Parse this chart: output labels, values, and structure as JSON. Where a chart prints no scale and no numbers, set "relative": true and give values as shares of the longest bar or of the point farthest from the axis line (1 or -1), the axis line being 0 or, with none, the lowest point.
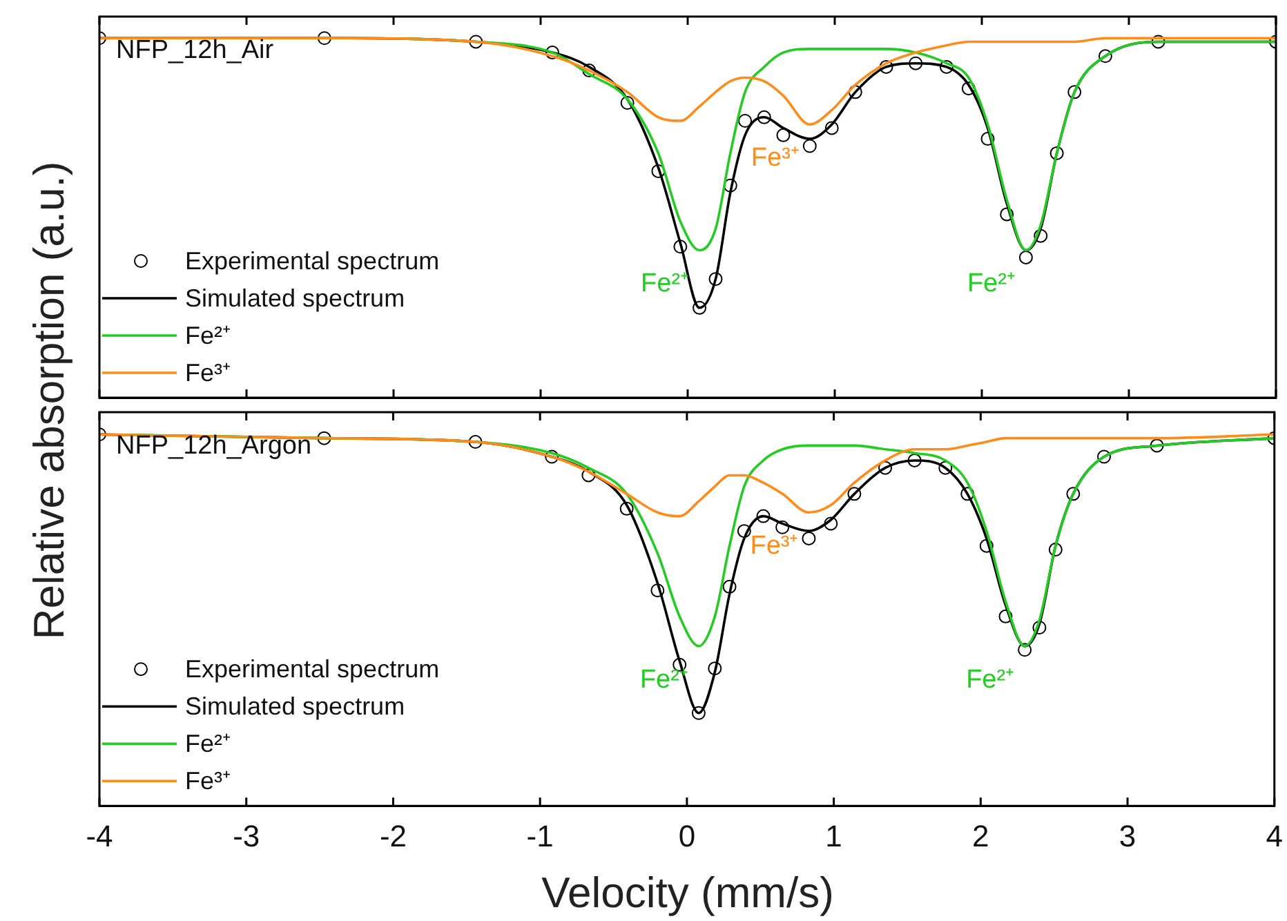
{
  "chart_data": [
    {
      "type": "line",
      "title": "NFP_12h_Air",
      "ylabel": "Relative absorption (a.u.)",
      "relative": true,
      "legend": "bottom left",
      "tick_labels": false,
      "line_style": "solid",
      "xlim": [
        -4,
        4
      ],
      "xticks": [
        -4,
        -3,
        -2,
        -1,
        0,
        1,
        2,
        3,
        4
      ],
      "x": [
        -4,
        -2.47,
        -1.44,
        -0.92,
        -0.67,
        -0.41,
        -0.2,
        -0.05,
        0.08,
        0.19,
        0.29,
        0.39,
        0.52,
        0.65,
        0.83,
        0.98,
        1.14,
        1.35,
        1.55,
        1.76,
        1.91,
        2.04,
        2.17,
        2.3,
        2.4,
        2.51,
        2.63,
        2.84,
        3.2,
        4
      ],
      "series": [
        {
          "name": "Experimental spectrum",
          "type": "scatter",
          "marker": "circle",
          "color": "#000000",
          "values": [
            1.0,
            1.0,
            0.99,
            0.96,
            0.91,
            0.82,
            0.63,
            0.42,
            0.25,
            0.33,
            0.59,
            0.77,
            0.78,
            0.73,
            0.7,
            0.75,
            0.85,
            0.92,
            0.93,
            0.92,
            0.86,
            0.72,
            0.51,
            0.39,
            0.45,
            0.68,
            0.85,
            0.95,
            0.99,
            0.99
          ]
        },
        {
          "name": "Simulated spectrum",
          "color": "#000000",
          "values": [
            1.0,
            1.0,
            0.99,
            0.96,
            0.92,
            0.83,
            0.64,
            0.43,
            0.25,
            0.33,
            0.57,
            0.73,
            0.78,
            0.75,
            0.72,
            0.76,
            0.85,
            0.92,
            0.93,
            0.92,
            0.87,
            0.75,
            0.54,
            0.41,
            0.47,
            0.68,
            0.85,
            0.95,
            0.99,
            0.99
          ]
        },
        {
          "name": "Fe²⁺",
          "color": "#22cc22",
          "values": [
            1.0,
            1.0,
            0.99,
            0.96,
            0.9,
            0.83,
            0.68,
            0.49,
            0.41,
            0.47,
            0.68,
            0.85,
            0.92,
            0.96,
            0.97,
            0.97,
            0.97,
            0.97,
            0.96,
            0.93,
            0.89,
            0.76,
            0.55,
            0.41,
            0.48,
            0.68,
            0.85,
            0.95,
            0.99,
            0.99
          ]
        },
        {
          "name": "Fe³⁺",
          "color": "#ff8c1a",
          "values": [
            1.0,
            1.0,
            0.99,
            0.95,
            0.91,
            0.85,
            0.78,
            0.77,
            0.81,
            0.85,
            0.88,
            0.89,
            0.88,
            0.84,
            0.76,
            0.8,
            0.87,
            0.93,
            0.96,
            0.98,
            0.99,
            0.99,
            0.99,
            0.99,
            0.99,
            0.99,
            0.99,
            1.0,
            1.0,
            1.0
          ]
        }
      ],
      "annotations": [
        {
          "text": "Fe²⁺",
          "x": 0.08,
          "y": 0.41
        },
        {
          "text": "Fe³⁺",
          "x": 0.83,
          "y": 0.76
        },
        {
          "text": "Fe²⁺",
          "x": 2.3,
          "y": 0.41
        }
      ]
    },
    {
      "type": "line",
      "title": "NFP_12h_Argon",
      "xlabel": "Velocity (mm/s)",
      "relative": true,
      "legend": "bottom left",
      "tick_labels": "x",
      "line_style": "solid",
      "xlim": [
        -4,
        4
      ],
      "xticks": [
        -4,
        -3,
        -2,
        -1,
        0,
        1,
        2,
        3,
        4
      ],
      "x": [
        -4,
        -2.47,
        -1.44,
        -0.92,
        -0.67,
        -0.41,
        -0.2,
        -0.05,
        0.08,
        0.19,
        0.29,
        0.39,
        0.52,
        0.65,
        0.83,
        0.98,
        1.14,
        1.35,
        1.55,
        1.76,
        1.91,
        2.04,
        2.17,
        2.3,
        2.4,
        2.51,
        2.63,
        2.84,
        3.2,
        4
      ],
      "series": [
        {
          "name": "Experimental spectrum",
          "type": "scatter",
          "marker": "circle",
          "color": "#000000",
          "values": [
            1.0,
            0.99,
            0.98,
            0.94,
            0.89,
            0.8,
            0.58,
            0.38,
            0.25,
            0.37,
            0.59,
            0.74,
            0.78,
            0.75,
            0.72,
            0.76,
            0.84,
            0.91,
            0.93,
            0.91,
            0.84,
            0.7,
            0.51,
            0.42,
            0.48,
            0.69,
            0.84,
            0.94,
            0.97,
            0.99
          ]
        },
        {
          "name": "Simulated spectrum",
          "color": "#000000",
          "values": [
            1.0,
            0.99,
            0.98,
            0.94,
            0.9,
            0.81,
            0.6,
            0.39,
            0.25,
            0.36,
            0.57,
            0.72,
            0.78,
            0.76,
            0.74,
            0.77,
            0.84,
            0.91,
            0.93,
            0.91,
            0.84,
            0.72,
            0.54,
            0.43,
            0.49,
            0.7,
            0.84,
            0.94,
            0.97,
            0.99
          ]
        },
        {
          "name": "Fe²⁺",
          "color": "#22cc22",
          "values": [
            1.0,
            0.99,
            0.98,
            0.95,
            0.91,
            0.84,
            0.68,
            0.51,
            0.43,
            0.51,
            0.7,
            0.86,
            0.93,
            0.96,
            0.97,
            0.97,
            0.97,
            0.96,
            0.95,
            0.93,
            0.87,
            0.74,
            0.55,
            0.43,
            0.5,
            0.7,
            0.84,
            0.94,
            0.97,
            0.99
          ]
        },
        {
          "name": "Fe³⁺",
          "color": "#ff8c1a",
          "values": [
            1.0,
            0.99,
            0.98,
            0.94,
            0.9,
            0.84,
            0.79,
            0.78,
            0.82,
            0.86,
            0.89,
            0.89,
            0.87,
            0.84,
            0.79,
            0.81,
            0.87,
            0.93,
            0.96,
            0.96,
            0.97,
            0.98,
            0.99,
            0.99,
            0.99,
            0.99,
            0.99,
            0.99,
            0.99,
            1.0
          ]
        }
      ],
      "annotations": [
        {
          "text": "Fe²⁺",
          "x": 0.08,
          "y": 0.43
        },
        {
          "text": "Fe³⁺",
          "x": 0.83,
          "y": 0.79
        },
        {
          "text": "Fe²⁺",
          "x": 2.3,
          "y": 0.43
        }
      ]
    }
  ]
}
